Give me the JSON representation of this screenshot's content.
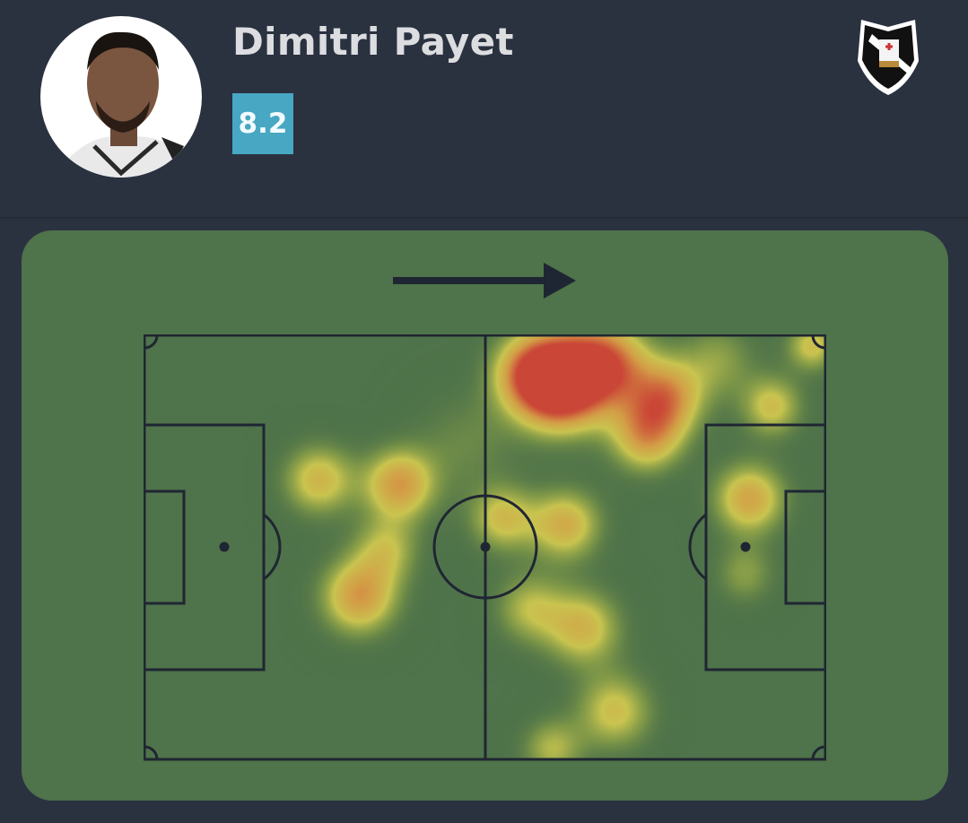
{
  "player": {
    "name": "Dimitri Payet",
    "rating": "8.2",
    "rating_color": "#48a7c2"
  },
  "team": {
    "crest_icon": "vasco-da-gama-crest"
  },
  "heatmap": {
    "attack_direction": "right",
    "pitch_color": "#4f734a",
    "line_color": "#1f2633"
  },
  "colors": {
    "background": "#2a3240"
  }
}
